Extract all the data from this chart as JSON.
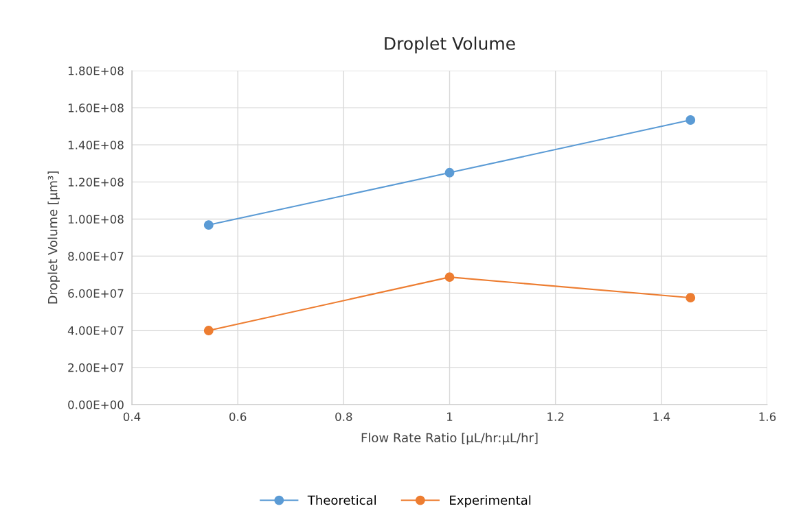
{
  "chart_data": {
    "type": "line",
    "title": "Droplet Volume",
    "xlabel": "Flow Rate Ratio [µL/hr:µL/hr]",
    "ylabel": "Droplet Volume [µm³]",
    "x": [
      0.545,
      1,
      1.455
    ],
    "series": [
      {
        "name": "Theoretical",
        "color": "#5b9bd5",
        "values": [
          96800000,
          125000000,
          153400000
        ]
      },
      {
        "name": "Experimental",
        "color": "#ed7d31",
        "values": [
          39900000,
          68700000,
          57600000
        ]
      }
    ],
    "xlim": [
      0.4,
      1.6
    ],
    "xticks": [
      0.4,
      0.6,
      0.8,
      1,
      1.2,
      1.4,
      1.6
    ],
    "ylim": [
      0,
      180000000
    ],
    "yticks": [
      {
        "value": 0,
        "label": "0.00E+00"
      },
      {
        "value": 20000000,
        "label": "2.00E+07"
      },
      {
        "value": 40000000,
        "label": "4.00E+07"
      },
      {
        "value": 60000000,
        "label": "6.00E+07"
      },
      {
        "value": 80000000,
        "label": "8.00E+07"
      },
      {
        "value": 100000000,
        "label": "1.00E+08"
      },
      {
        "value": 120000000,
        "label": "1.20E+08"
      },
      {
        "value": 140000000,
        "label": "1.40E+08"
      },
      {
        "value": 160000000,
        "label": "1.60E+08"
      },
      {
        "value": 180000000,
        "label": "1.80E+08"
      }
    ],
    "grid": true,
    "legend": "bottom",
    "marker": "circle",
    "line_style": "solid"
  }
}
